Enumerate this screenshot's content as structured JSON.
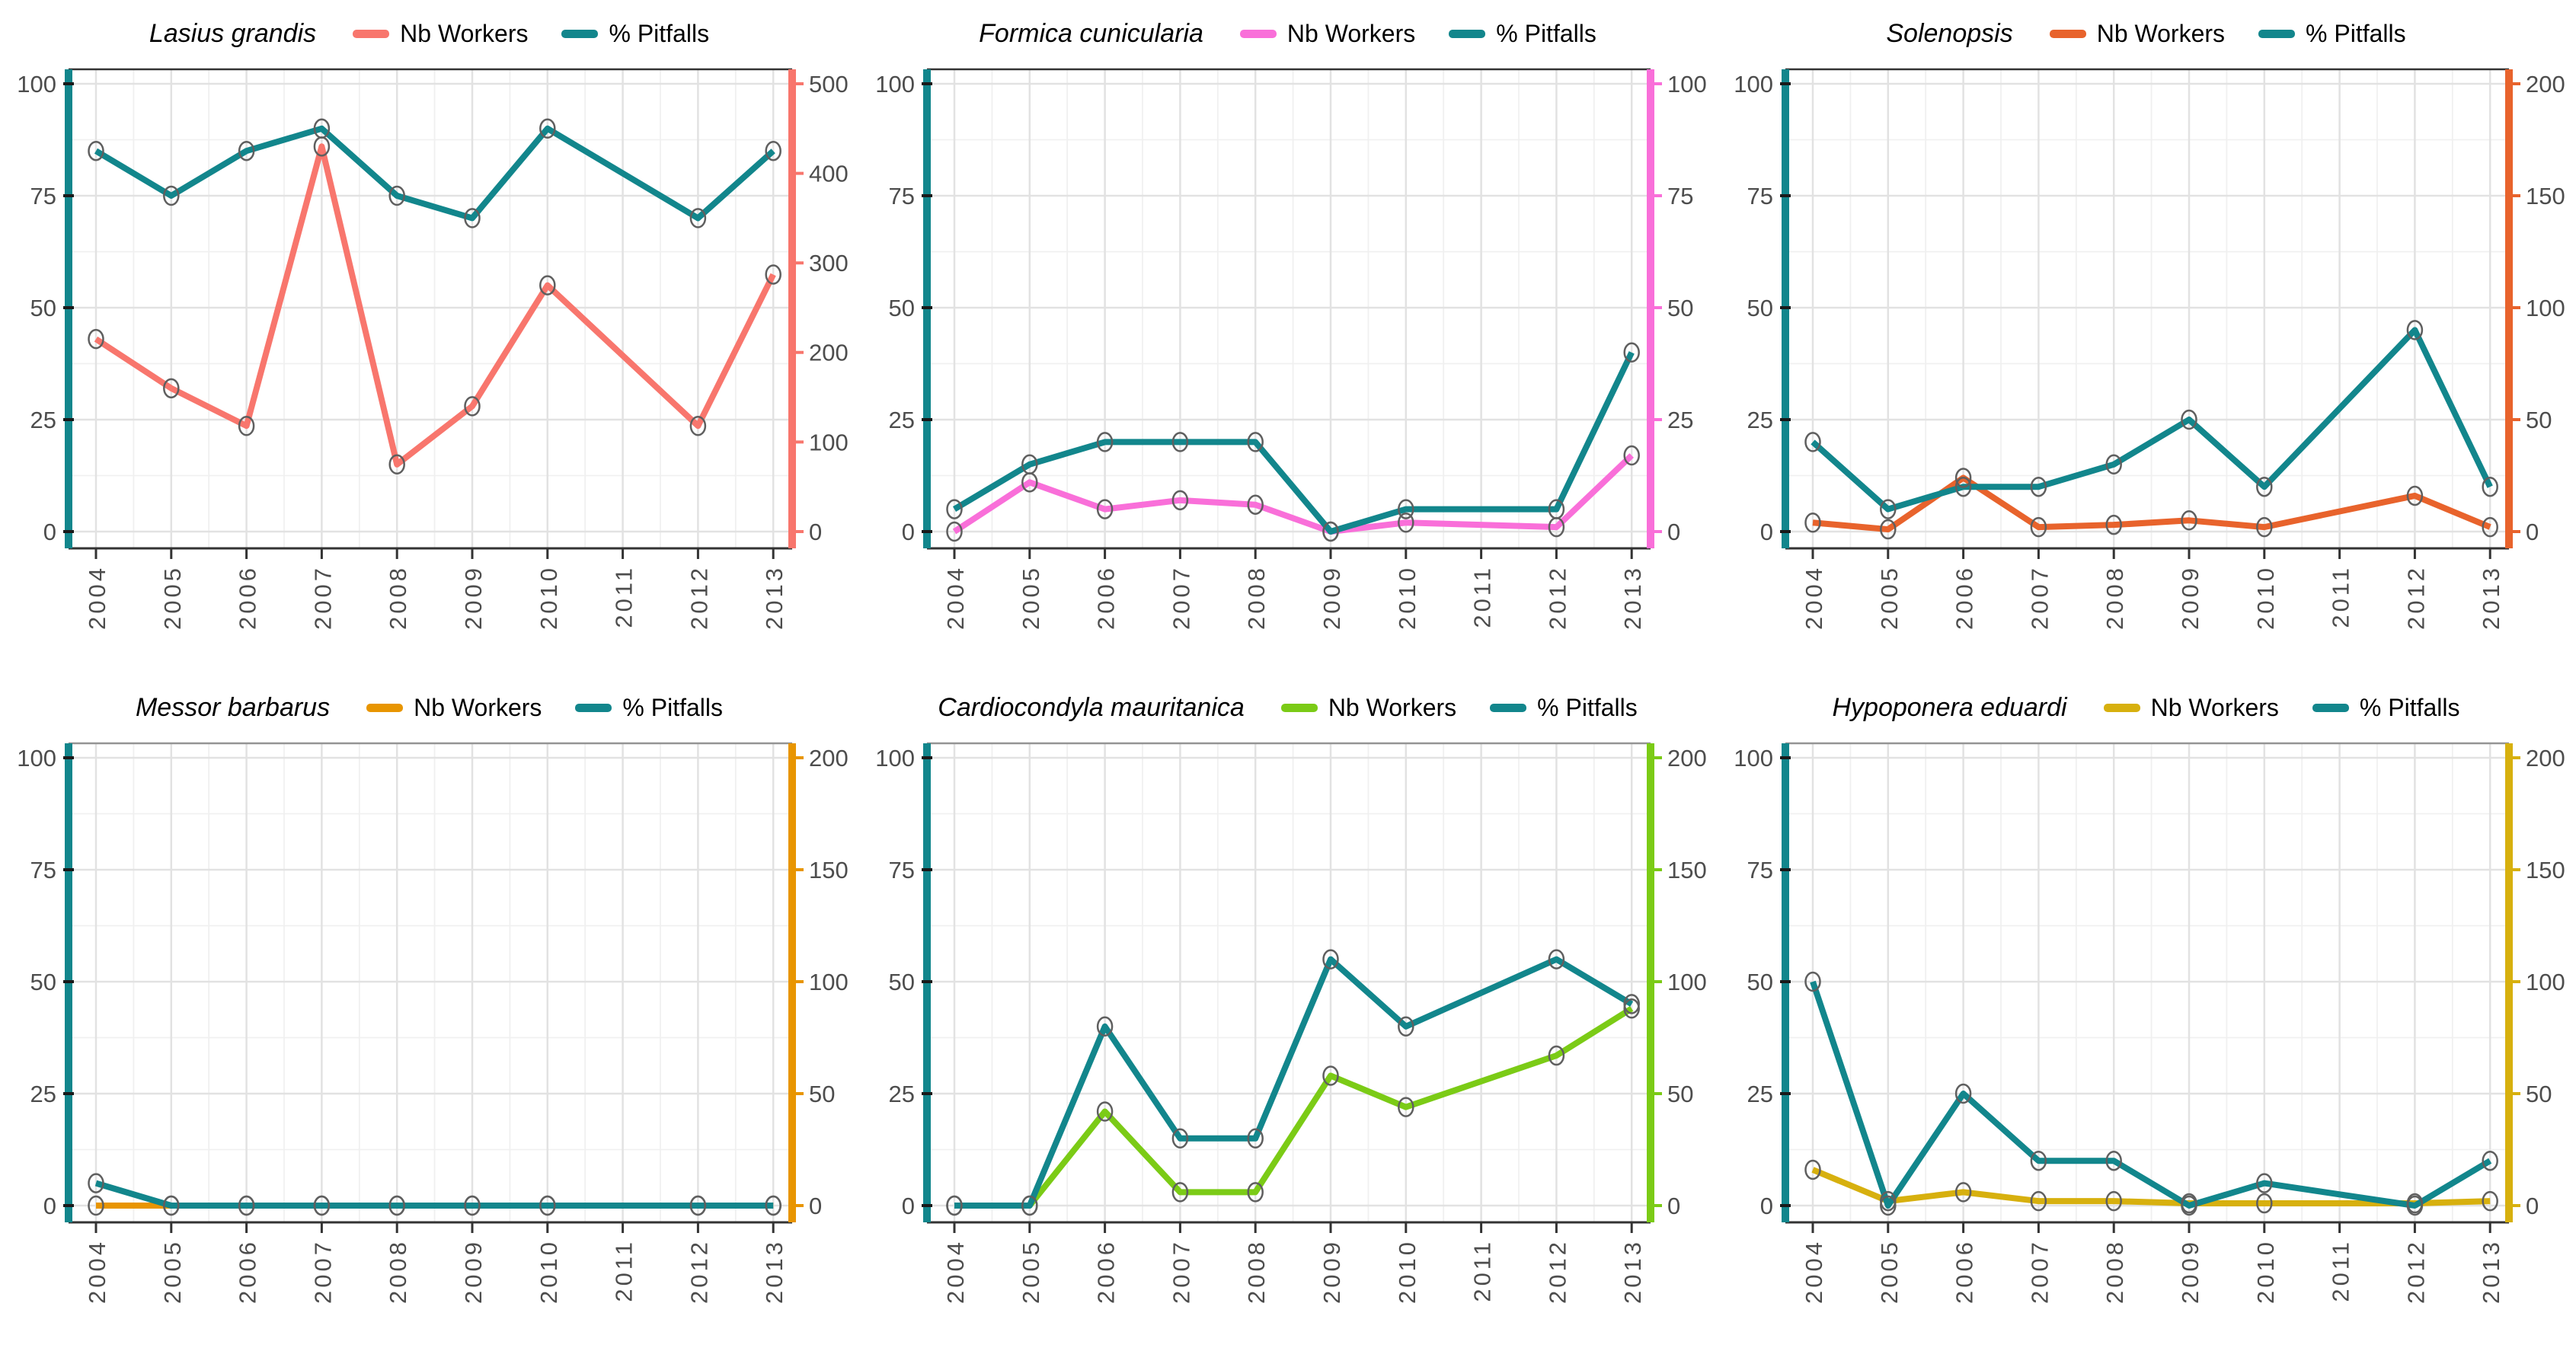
{
  "figure": {
    "description": "Faceted dual-axis line charts of ant species abundance",
    "rows": 2,
    "cols": 3
  },
  "legend": {
    "workers_label": "Nb Workers",
    "pitfalls_label": "% Pitfalls"
  },
  "colors": {
    "pitfalls": "#12868C",
    "grid_major": "#E2E2E2",
    "grid_minor": "#F0F0F0",
    "axis_text": "#4D4D4D",
    "marker_stroke": "#5F5F5F",
    "top_border_row1": "#333333",
    "top_border_row2": "#949494",
    "x_axis": "#333333",
    "left_tick": "#1A1A1A",
    "background": "#FFFFFF"
  },
  "chart_data": [
    {
      "type": "line",
      "title": "Lasius grandis",
      "workers_color": "#F8766D",
      "x": [
        "2004",
        "2005",
        "2006",
        "2007",
        "2008",
        "2009",
        "2010",
        "2011",
        "2012",
        "2013"
      ],
      "left_axis": {
        "min": 0,
        "max": 100,
        "ticks": [
          0,
          25,
          50,
          75,
          100
        ]
      },
      "right_axis": {
        "min": 0,
        "max": 500,
        "ticks": [
          0,
          100,
          200,
          300,
          400,
          500
        ]
      },
      "series": [
        {
          "name": "Nb Workers",
          "axis": "right",
          "values": [
            215,
            160,
            118,
            430,
            75,
            140,
            275,
            null,
            118,
            287
          ]
        },
        {
          "name": "% Pitfalls",
          "axis": "left",
          "values": [
            85,
            75,
            85,
            90,
            75,
            70,
            90,
            null,
            70,
            85
          ]
        }
      ]
    },
    {
      "type": "line",
      "title": "Formica cunicularia",
      "workers_color": "#F96FD9",
      "x": [
        "2004",
        "2005",
        "2006",
        "2007",
        "2008",
        "2009",
        "2010",
        "2011",
        "2012",
        "2013"
      ],
      "left_axis": {
        "min": 0,
        "max": 100,
        "ticks": [
          0,
          25,
          50,
          75,
          100
        ]
      },
      "right_axis": {
        "min": 0,
        "max": 100,
        "ticks": [
          0,
          25,
          50,
          75,
          100
        ]
      },
      "series": [
        {
          "name": "Nb Workers",
          "axis": "right",
          "values": [
            0,
            11,
            5,
            7,
            6,
            0,
            2,
            null,
            1,
            17
          ]
        },
        {
          "name": "% Pitfalls",
          "axis": "left",
          "values": [
            5,
            15,
            20,
            20,
            20,
            0,
            5,
            null,
            5,
            40
          ]
        }
      ]
    },
    {
      "type": "line",
      "title": "Solenopsis",
      "workers_color": "#E8632C",
      "x": [
        "2004",
        "2005",
        "2006",
        "2007",
        "2008",
        "2009",
        "2010",
        "2011",
        "2012",
        "2013"
      ],
      "left_axis": {
        "min": 0,
        "max": 100,
        "ticks": [
          0,
          25,
          50,
          75,
          100
        ]
      },
      "right_axis": {
        "min": 0,
        "max": 200,
        "ticks": [
          0,
          50,
          100,
          150,
          200
        ]
      },
      "series": [
        {
          "name": "Nb Workers",
          "axis": "right",
          "values": [
            4,
            1,
            24,
            2,
            3,
            5,
            2,
            null,
            16,
            2
          ]
        },
        {
          "name": "% Pitfalls",
          "axis": "left",
          "values": [
            20,
            5,
            10,
            10,
            15,
            25,
            10,
            null,
            45,
            10
          ]
        }
      ]
    },
    {
      "type": "line",
      "title": "Messor barbarus",
      "workers_color": "#E89500",
      "x": [
        "2004",
        "2005",
        "2006",
        "2007",
        "2008",
        "2009",
        "2010",
        "2011",
        "2012",
        "2013"
      ],
      "left_axis": {
        "min": 0,
        "max": 100,
        "ticks": [
          0,
          25,
          50,
          75,
          100
        ]
      },
      "right_axis": {
        "min": 0,
        "max": 200,
        "ticks": [
          0,
          50,
          100,
          150,
          200
        ]
      },
      "series": [
        {
          "name": "Nb Workers",
          "axis": "right",
          "values": [
            0,
            0,
            0,
            0,
            0,
            0,
            0,
            null,
            0,
            0
          ]
        },
        {
          "name": "% Pitfalls",
          "axis": "left",
          "values": [
            5,
            0,
            0,
            0,
            0,
            0,
            0,
            null,
            0,
            0
          ]
        }
      ]
    },
    {
      "type": "line",
      "title": "Cardiocondyla mauritanica",
      "workers_color": "#7BCB16",
      "x": [
        "2004",
        "2005",
        "2006",
        "2007",
        "2008",
        "2009",
        "2010",
        "2011",
        "2012",
        "2013"
      ],
      "left_axis": {
        "min": 0,
        "max": 100,
        "ticks": [
          0,
          25,
          50,
          75,
          100
        ]
      },
      "right_axis": {
        "min": 0,
        "max": 200,
        "ticks": [
          0,
          50,
          100,
          150,
          200
        ]
      },
      "series": [
        {
          "name": "Nb Workers",
          "axis": "right",
          "values": [
            0,
            0,
            42,
            6,
            6,
            58,
            44,
            null,
            67,
            88
          ]
        },
        {
          "name": "% Pitfalls",
          "axis": "left",
          "values": [
            0,
            0,
            40,
            15,
            15,
            55,
            40,
            null,
            55,
            45
          ]
        }
      ]
    },
    {
      "type": "line",
      "title": "Hypoponera eduardi",
      "workers_color": "#D7B00E",
      "x": [
        "2004",
        "2005",
        "2006",
        "2007",
        "2008",
        "2009",
        "2010",
        "2011",
        "2012",
        "2013"
      ],
      "left_axis": {
        "min": 0,
        "max": 100,
        "ticks": [
          0,
          25,
          50,
          75,
          100
        ]
      },
      "right_axis": {
        "min": 0,
        "max": 200,
        "ticks": [
          0,
          50,
          100,
          150,
          200
        ]
      },
      "series": [
        {
          "name": "Nb Workers",
          "axis": "right",
          "values": [
            16,
            2,
            6,
            2,
            2,
            1,
            1,
            null,
            1,
            2
          ]
        },
        {
          "name": "% Pitfalls",
          "axis": "left",
          "values": [
            50,
            0,
            25,
            10,
            10,
            0,
            5,
            null,
            0,
            10
          ]
        }
      ]
    }
  ]
}
